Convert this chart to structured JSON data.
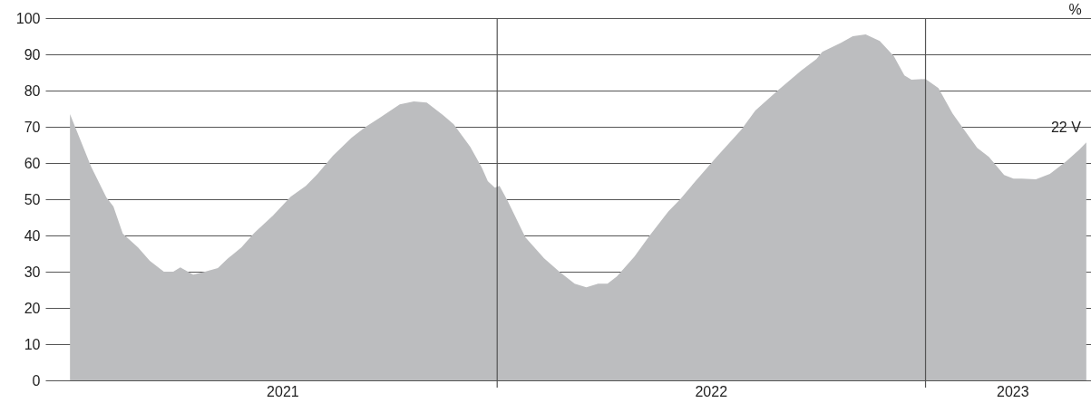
{
  "chart_data": {
    "type": "area",
    "ylabel": "%",
    "color": "#bcbdbf",
    "x": [
      "2021-01-02",
      "2021-01-20",
      "2021-02-02",
      "2021-02-08",
      "2021-02-16",
      "2021-03-01",
      "2021-03-11",
      "2021-03-23",
      "2021-03-31",
      "2021-04-06",
      "2021-04-17",
      "2021-04-27",
      "2021-05-08",
      "2021-05-16",
      "2021-05-28",
      "2021-06-08",
      "2021-06-24",
      "2021-07-09",
      "2021-07-22",
      "2021-08-01",
      "2021-08-14",
      "2021-08-30",
      "2021-09-11",
      "2021-09-23",
      "2021-10-10",
      "2021-10-22",
      "2021-11-02",
      "2021-11-16",
      "2021-11-25",
      "2021-12-09",
      "2021-12-19",
      "2021-12-24",
      "2021-12-30",
      "2022-01-03",
      "2022-01-10",
      "2022-01-25",
      "2022-02-10",
      "2022-02-23",
      "2022-03-08",
      "2022-03-18",
      "2022-03-28",
      "2022-04-05",
      "2022-04-13",
      "2022-04-28",
      "2022-05-11",
      "2022-05-27",
      "2022-06-06",
      "2022-06-19",
      "2022-07-07",
      "2022-07-28",
      "2022-08-09",
      "2022-08-28",
      "2022-09-17",
      "2022-09-30",
      "2022-10-05",
      "2022-10-21",
      "2022-10-31",
      "2022-11-11",
      "2022-11-23",
      "2022-12-05",
      "2022-12-14",
      "2022-12-20",
      "2023-01-01",
      "2023-01-12",
      "2023-01-24",
      "2023-02-04",
      "2023-02-14",
      "2023-02-24",
      "2023-03-09",
      "2023-03-17",
      "2023-03-24",
      "2023-04-05",
      "2023-04-17",
      "2023-05-01",
      "2023-05-12",
      "2023-05-18"
    ],
    "values": [
      73.5,
      59,
      50.5,
      48,
      40.5,
      36.7,
      33,
      30,
      30,
      31.2,
      29.2,
      30,
      31,
      33.5,
      36.7,
      40.7,
      45.5,
      50.7,
      53.7,
      57,
      62,
      67,
      70,
      72.5,
      76.2,
      77,
      76.7,
      73.2,
      70.7,
      64.5,
      58.7,
      55,
      53.2,
      53.7,
      49.5,
      39.5,
      33.7,
      30,
      26.7,
      25.7,
      26.7,
      26.7,
      28.7,
      34.2,
      40,
      46.7,
      50,
      55,
      61.7,
      69.2,
      74.5,
      80,
      85.5,
      88.7,
      90.7,
      93.2,
      95,
      95.5,
      93.7,
      89.5,
      84.2,
      83,
      83.2,
      80.7,
      73.7,
      68.7,
      64.2,
      61.7,
      56.7,
      55.7,
      55.7,
      55.5,
      57,
      60.5,
      63.7,
      65.7
    ],
    "xlim": [
      "2020-12-12",
      "2023-05-22"
    ],
    "xticks": [
      {
        "value": "2021-07-02",
        "label": "2021"
      },
      {
        "value": "2022-07-02",
        "label": "2022"
      },
      {
        "value": "2023-03-16",
        "label": "2023"
      }
    ],
    "ylim": [
      0,
      100
    ],
    "yticks": [
      0,
      10,
      20,
      30,
      40,
      50,
      60,
      70,
      80,
      90,
      100
    ],
    "grid": "y",
    "ref_lines": [
      {
        "axis": "x",
        "value": "2022-01-01"
      },
      {
        "axis": "x",
        "value": "2023-01-01"
      }
    ],
    "annotations": [
      {
        "text": "22 V",
        "x": "2023-05-18",
        "y": 65.7
      }
    ]
  }
}
